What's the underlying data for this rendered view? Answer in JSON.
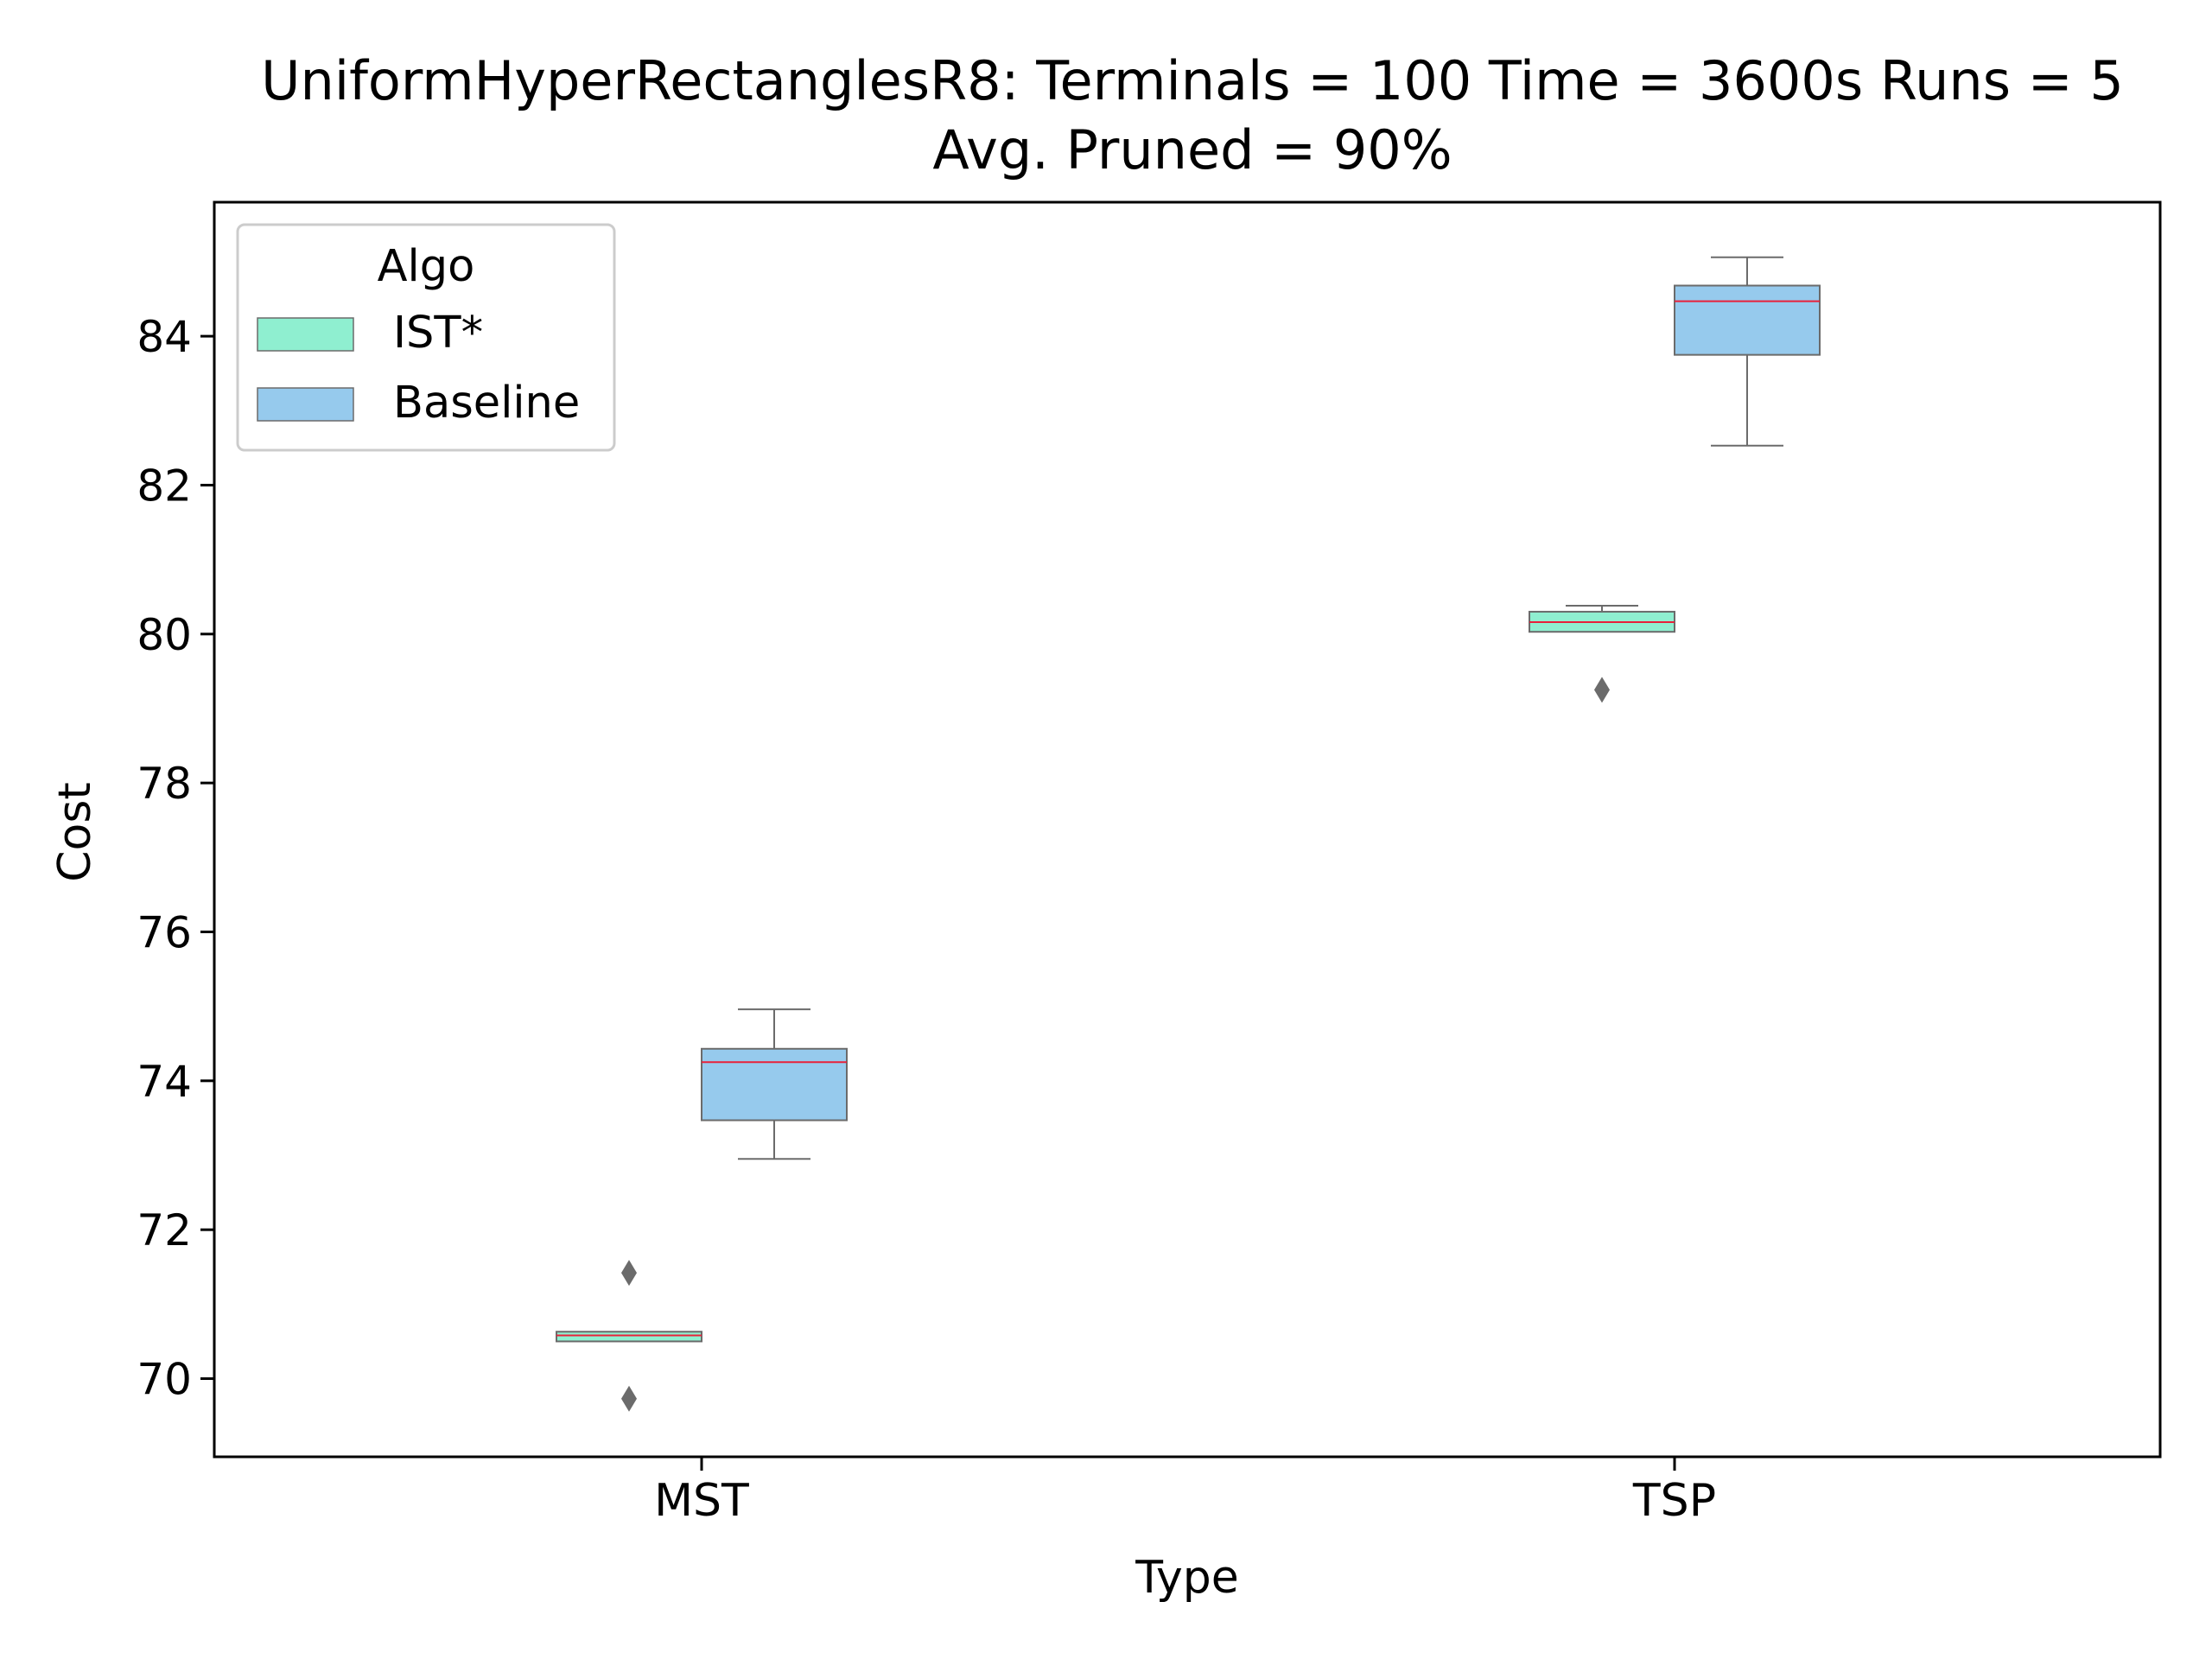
{
  "chart_data": {
    "type": "box",
    "title_line1": "UniformHyperRectanglesR8:  Terminals = 100  Time = 3600s  Runs = 5",
    "title_line2": "Avg. Pruned = 90%",
    "xlabel": "Type",
    "ylabel": "Cost",
    "ylim": [
      68.95,
      85.8
    ],
    "yticks": [
      "70",
      "72",
      "74",
      "76",
      "78",
      "80",
      "82",
      "84"
    ],
    "categories": [
      "MST",
      "TSP"
    ],
    "grid": false,
    "legend": {
      "title": "Algo",
      "placement": "top-left",
      "entries": [
        "IST*",
        "Baseline"
      ]
    },
    "series": [
      {
        "name": "IST*",
        "color": "#8fefd0",
        "boxes": [
          {
            "category": "MST",
            "whisker_low": 70.5,
            "q1": 70.5,
            "median": 70.58,
            "q3": 70.63,
            "whisker_high": 70.63,
            "outliers": [
              71.42,
              69.73
            ]
          },
          {
            "category": "TSP",
            "whisker_low": 80.03,
            "q1": 80.03,
            "median": 80.16,
            "q3": 80.3,
            "whisker_high": 80.38,
            "outliers": [
              79.25
            ]
          }
        ]
      },
      {
        "name": "Baseline",
        "color": "#96caed",
        "boxes": [
          {
            "category": "MST",
            "whisker_low": 72.95,
            "q1": 73.47,
            "median": 74.25,
            "q3": 74.43,
            "whisker_high": 74.96,
            "outliers": []
          },
          {
            "category": "TSP",
            "whisker_low": 82.53,
            "q1": 83.75,
            "median": 84.47,
            "q3": 84.68,
            "whisker_high": 85.06,
            "outliers": []
          }
        ]
      }
    ],
    "median_color": "#e8213a",
    "line_color": "#6b6b6b"
  }
}
